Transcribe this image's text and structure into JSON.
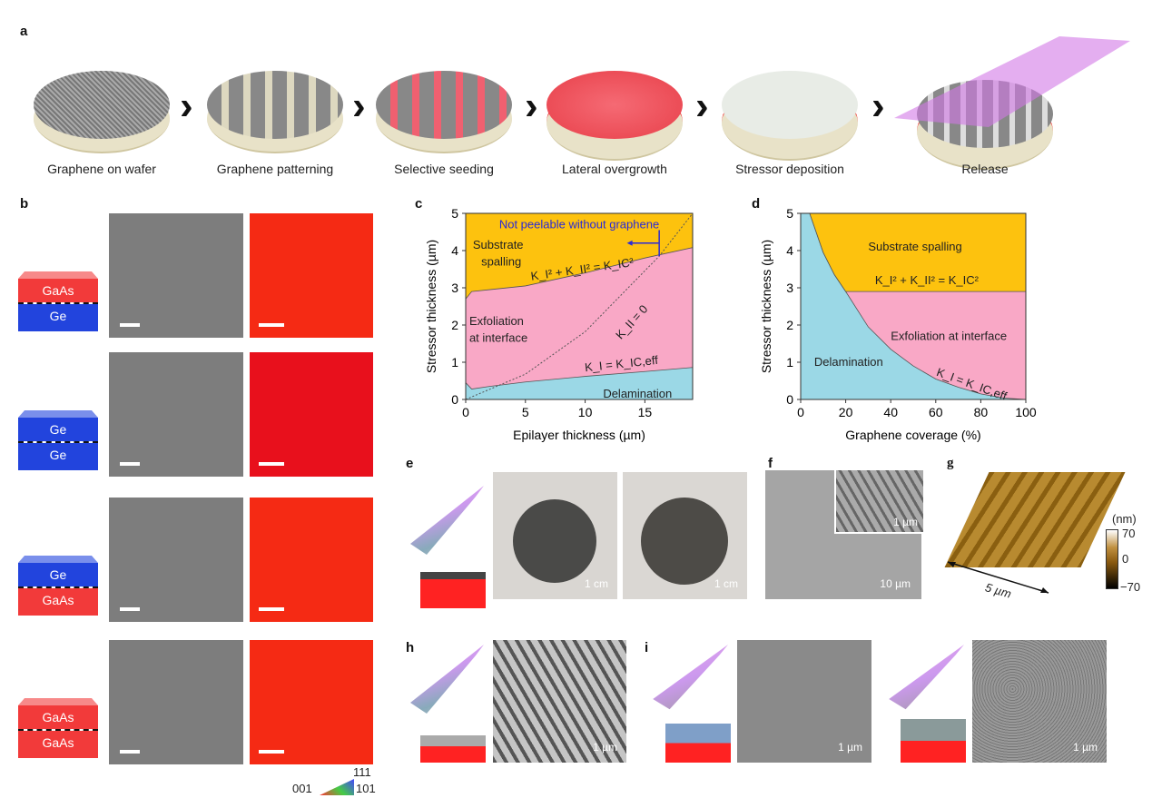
{
  "panel_labels": {
    "a": "a",
    "b": "b",
    "c": "c",
    "d": "d",
    "e": "e",
    "f": "f",
    "g": "g",
    "h": "h",
    "i": "i"
  },
  "panel_a": {
    "steps": [
      "Graphene on wafer",
      "Graphene patterning",
      "Selective seeding",
      "Lateral overgrowth",
      "Stressor deposition",
      "Release"
    ]
  },
  "panel_b": {
    "rows": [
      {
        "top": "GaAs",
        "bottom": "Ge",
        "top_color": "#f23a3a",
        "bottom_color": "#2244dd"
      },
      {
        "top": "Ge",
        "bottom": "Ge",
        "top_color": "#2244dd",
        "bottom_color": "#2244dd"
      },
      {
        "top": "Ge",
        "bottom": "GaAs",
        "top_color": "#2244dd",
        "bottom_color": "#f23a3a"
      },
      {
        "top": "GaAs",
        "bottom": "GaAs",
        "top_color": "#f23a3a",
        "bottom_color": "#f23a3a"
      }
    ],
    "ipf_legend": {
      "c001": "001",
      "c101": "101",
      "c111": "111"
    }
  },
  "chart_data": [
    {
      "type": "area",
      "panel": "c",
      "xlabel": "Epilayer thickness (µm)",
      "ylabel": "Stressor thickness (µm)",
      "xlim": [
        0,
        19
      ],
      "ylim": [
        0,
        5
      ],
      "xticks": [
        0,
        5,
        10,
        15
      ],
      "yticks": [
        0,
        1,
        2,
        3,
        4,
        5
      ],
      "boundaries": {
        "spalling": {
          "label": "K_I² + K_II² = K_IC²",
          "x": [
            0,
            0.5,
            2,
            5,
            10,
            15,
            19
          ],
          "y": [
            2.7,
            2.9,
            2.95,
            3.05,
            3.4,
            3.8,
            4.08
          ]
        },
        "delamination": {
          "label": "K_I = K_IC,eff",
          "x": [
            0,
            0.5,
            2,
            5,
            10,
            15,
            19
          ],
          "y": [
            0.45,
            0.28,
            0.35,
            0.47,
            0.62,
            0.75,
            0.86
          ]
        },
        "kii_zero": {
          "label": "K_II = 0",
          "x": [
            0,
            5,
            10,
            16.2,
            19
          ],
          "y": [
            0,
            0.68,
            1.82,
            3.85,
            5
          ]
        }
      },
      "regions": [
        {
          "name": "Substrate spalling",
          "color": "#fdc20e"
        },
        {
          "name": "Exfoliation at interface",
          "color": "#f9a8c6"
        },
        {
          "name": "Delamination",
          "color": "#9bd8e6"
        }
      ],
      "annotation": {
        "text": "Not peelable without graphene",
        "x": 16.2,
        "color": "#2b2bd6"
      }
    },
    {
      "type": "area",
      "panel": "d",
      "xlabel": "Graphene coverage (%)",
      "ylabel": "Stressor thickness (µm)",
      "xlim": [
        0,
        100
      ],
      "ylim": [
        0,
        5
      ],
      "xticks": [
        0,
        20,
        40,
        60,
        80,
        100
      ],
      "yticks": [
        0,
        1,
        2,
        3,
        4,
        5
      ],
      "boundaries": {
        "delamination": {
          "label": "K_I = K_IC,eff",
          "x": [
            4,
            10,
            15,
            20,
            30,
            40,
            50,
            60,
            70,
            80,
            90,
            100
          ],
          "y": [
            5,
            3.95,
            3.35,
            2.9,
            1.95,
            1.35,
            0.9,
            0.55,
            0.33,
            0.15,
            0.04,
            0
          ]
        },
        "spalling": {
          "label": "K_I² + K_II² = K_IC²",
          "x": [
            20,
            100
          ],
          "y": [
            2.9,
            2.9
          ]
        }
      },
      "regions": [
        {
          "name": "Substrate spalling",
          "color": "#fdc20e"
        },
        {
          "name": "Exfoliation at interface",
          "color": "#f9a8c6"
        },
        {
          "name": "Delamination",
          "color": "#9bd8e6"
        }
      ]
    }
  ],
  "panel_e": {
    "scale1": "1 cm",
    "scale2": "1 cm"
  },
  "panel_f": {
    "scale": "10 µm",
    "inset_scale": "1 µm"
  },
  "panel_g": {
    "unit": "(nm)",
    "max": "70",
    "mid": "0",
    "min": "−70",
    "size": "5 µm"
  },
  "panel_h": {
    "scale": "1 µm"
  },
  "panel_i": {
    "scale1": "1 µm",
    "scale2": "1 µm"
  }
}
